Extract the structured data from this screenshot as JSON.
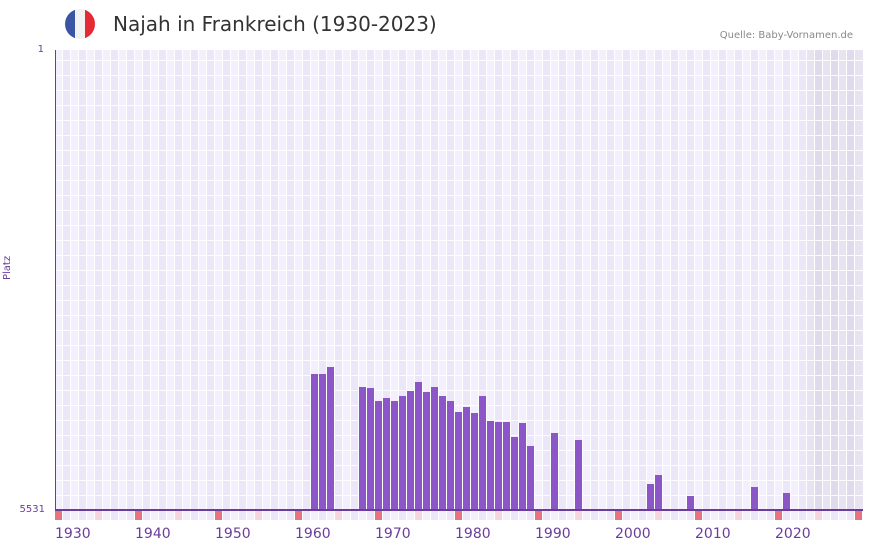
{
  "header": {
    "title": "Najah in Frankreich (1930-2023)",
    "source": "Quelle: Baby-Vornamen.de",
    "flag_colors": [
      "#3a55a4",
      "#f2f2f2",
      "#e32a35"
    ]
  },
  "colors": {
    "bar": "#8c55c8",
    "axis": "#6a3d9a",
    "grid_a": "#f3effc",
    "grid_b": "#ece7f8",
    "future_a": "#e7e3f0",
    "future_b": "#e0dbec",
    "tick_decade": "#e57380",
    "tick_half": "#f5d6de"
  },
  "chart_data": {
    "type": "bar",
    "title": "Najah in Frankreich (1930-2023)",
    "xlabel": "",
    "ylabel": "Platz",
    "y_inverted": true,
    "ylim": [
      1,
      5531
    ],
    "y_tick_labels": [
      "1",
      "5531"
    ],
    "x_tick_labels": [
      "1930",
      "1940",
      "1950",
      "1960",
      "1970",
      "1980",
      "1990",
      "2000",
      "2010",
      "2020"
    ],
    "x_range": [
      1930,
      2030
    ],
    "grid": true,
    "legend": null,
    "source": "Quelle: Baby-Vornamen.de",
    "categories": [
      1962,
      1963,
      1964,
      1968,
      1969,
      1970,
      1971,
      1972,
      1973,
      1974,
      1975,
      1976,
      1977,
      1978,
      1979,
      1980,
      1981,
      1982,
      1983,
      1984,
      1985,
      1986,
      1987,
      1988,
      1989,
      1992,
      1995,
      2004,
      2005,
      2009,
      2017,
      2021
    ],
    "series": [
      {
        "name": "Platz",
        "values": [
          3896,
          3896,
          3812,
          4052,
          4064,
          4220,
          4185,
          4220,
          4160,
          4100,
          3992,
          4112,
          4052,
          4160,
          4220,
          4353,
          4293,
          4365,
          4160,
          4461,
          4473,
          4473,
          4653,
          4485,
          4762,
          4605,
          4689,
          5218,
          5110,
          5363,
          5254,
          5326
        ]
      }
    ]
  }
}
